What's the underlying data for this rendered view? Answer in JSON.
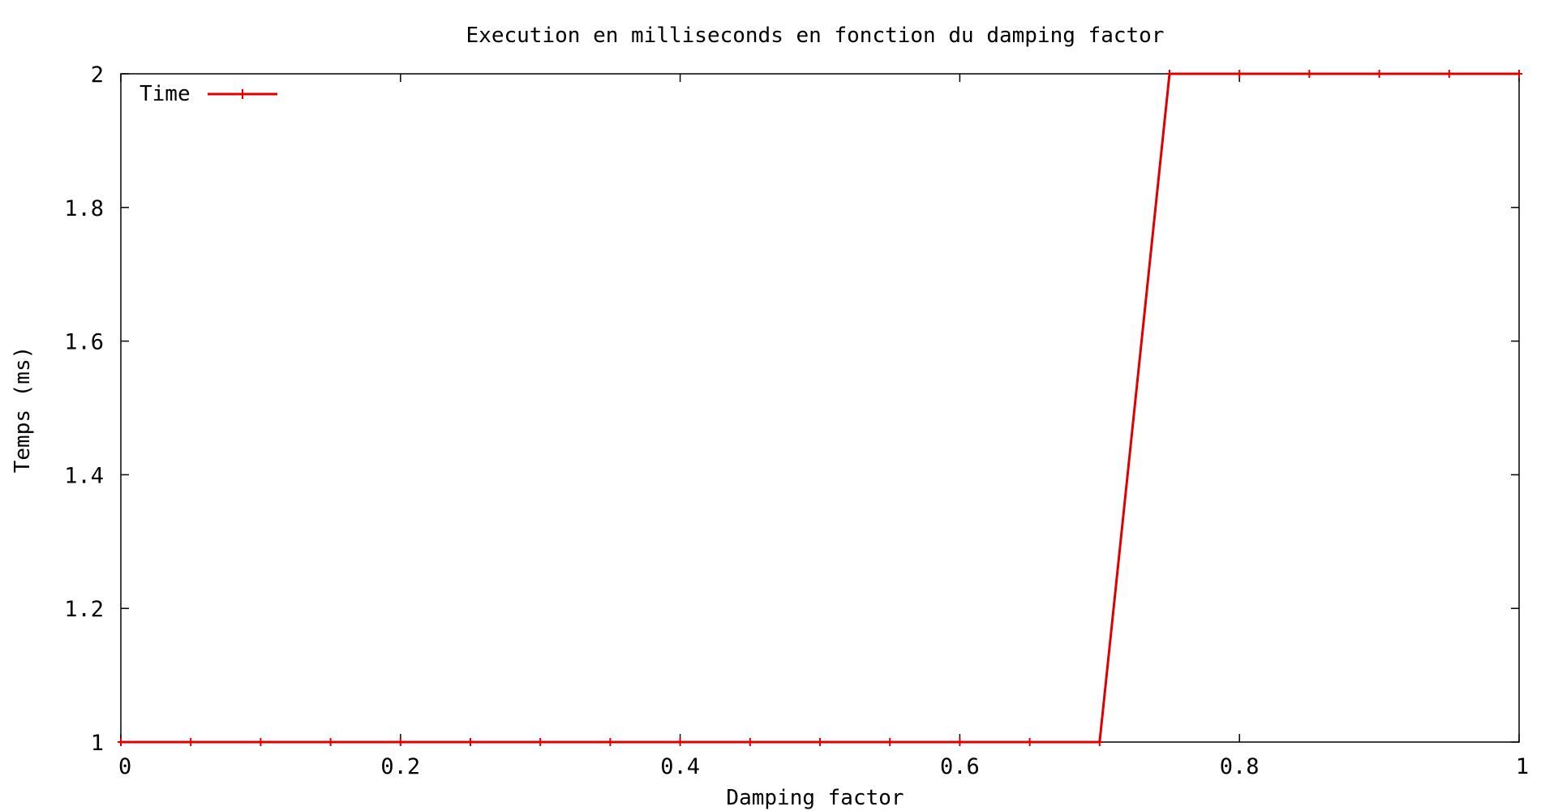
{
  "chart_data": {
    "type": "line",
    "title": "Execution en milliseconds en fonction du damping factor",
    "xlabel": "Damping factor",
    "ylabel": "Temps (ms)",
    "xlim": [
      0,
      1
    ],
    "ylim": [
      1,
      2
    ],
    "xticks": [
      "0",
      "0.2",
      "0.4",
      "0.6",
      "0.8",
      "1"
    ],
    "xtick_values": [
      0,
      0.2,
      0.4,
      0.6,
      0.8,
      1
    ],
    "yticks": [
      "1",
      "1.2",
      "1.4",
      "1.6",
      "1.8",
      "2"
    ],
    "ytick_values": [
      1,
      1.2,
      1.4,
      1.6,
      1.8,
      2
    ],
    "grid": false,
    "legend_position": "top-left",
    "series": [
      {
        "name": "Time",
        "color": "#e00000",
        "marker": "plus",
        "x": [
          0,
          0.05,
          0.1,
          0.15,
          0.2,
          0.25,
          0.3,
          0.35,
          0.4,
          0.45,
          0.5,
          0.55,
          0.6,
          0.65,
          0.7,
          0.75,
          0.8,
          0.85,
          0.9,
          0.95,
          1.0
        ],
        "y": [
          1,
          1,
          1,
          1,
          1,
          1,
          1,
          1,
          1,
          1,
          1,
          1,
          1,
          1,
          1,
          2,
          2,
          2,
          2,
          2,
          2
        ]
      }
    ]
  }
}
